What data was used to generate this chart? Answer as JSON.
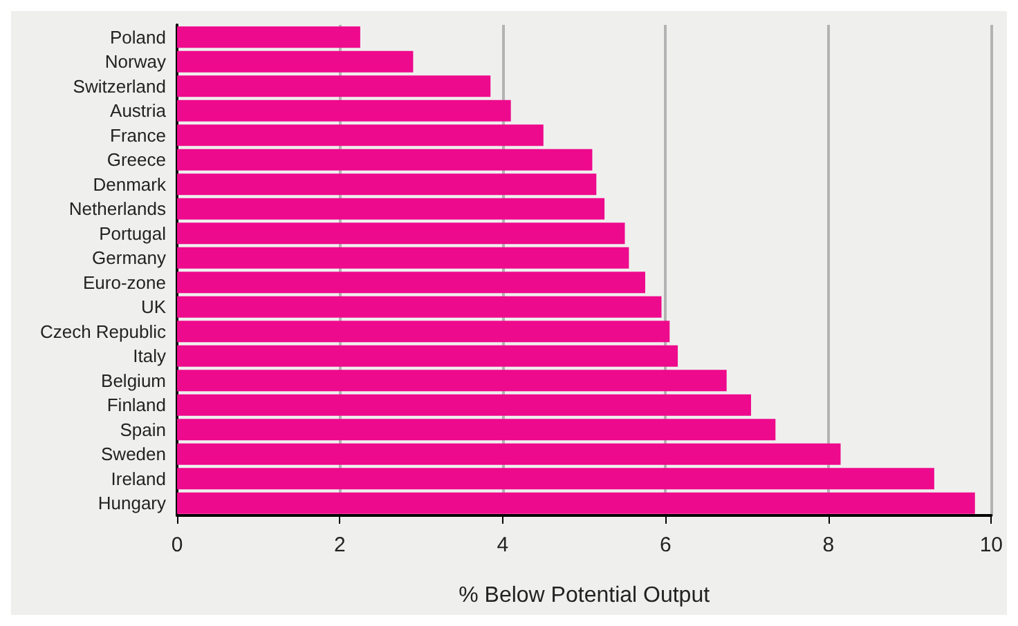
{
  "chart_data": {
    "type": "bar",
    "orientation": "horizontal",
    "xlabel": "% Below Potential Output",
    "categories": [
      "Poland",
      "Norway",
      "Switzerland",
      "Austria",
      "France",
      "Greece",
      "Denmark",
      "Netherlands",
      "Portugal",
      "Germany",
      "Euro-zone",
      "UK",
      "Czech Republic",
      "Italy",
      "Belgium",
      "Finland",
      "Spain",
      "Sweden",
      "Ireland",
      "Hungary"
    ],
    "values": [
      2.25,
      2.9,
      3.85,
      4.1,
      4.5,
      5.1,
      5.15,
      5.25,
      5.5,
      5.55,
      5.75,
      5.95,
      6.05,
      6.15,
      6.75,
      7.05,
      7.35,
      8.15,
      9.3,
      9.8
    ],
    "color": "#ee0a8c",
    "xlim": [
      0,
      10
    ],
    "xticks": [
      0,
      2,
      4,
      6,
      8,
      10
    ],
    "grid": "x"
  }
}
